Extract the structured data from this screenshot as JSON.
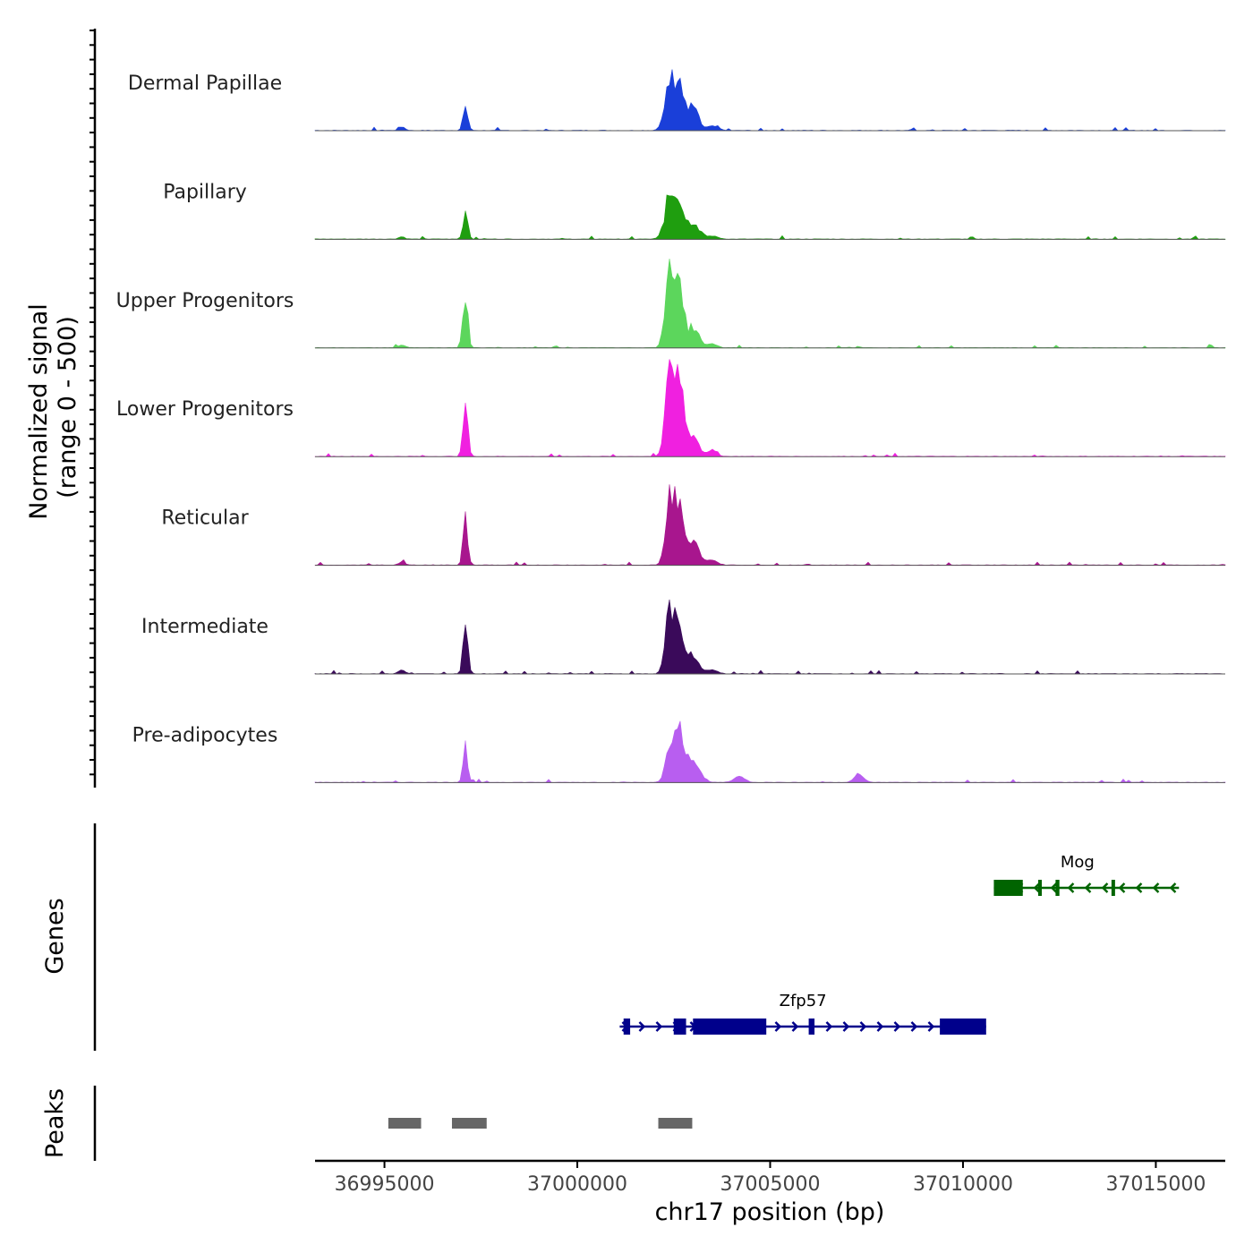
{
  "chart_data": {
    "type": "area",
    "chromosome": "chr17",
    "xlim": [
      36993200,
      37016800
    ],
    "xlabel": "chr17 position (bp)",
    "x_ticks": [
      36995000,
      37000000,
      37005000,
      37010000,
      37015000
    ],
    "x_tick_labels": [
      "36995000",
      "37000000",
      "37005000",
      "37010000",
      "37015000"
    ],
    "coverage_ylabel_line1": "Normalized signal",
    "coverage_ylabel_line2": "(range 0 - 500)",
    "ylim": [
      0,
      500
    ],
    "genes_label": "Genes",
    "peaks_label": "Peaks",
    "tracks": [
      {
        "name": "Dermal Papillae",
        "color": "#1a3fd9",
        "peaks": [
          [
            36995450,
            18,
            80
          ],
          [
            36997100,
            120,
            60
          ],
          [
            37002400,
            230,
            130
          ],
          [
            37002650,
            220,
            110
          ],
          [
            37003000,
            120,
            130
          ],
          [
            37003500,
            22,
            150
          ]
        ]
      },
      {
        "name": "Papillary",
        "color": "#1f9e0f",
        "peaks": [
          [
            36995450,
            12,
            80
          ],
          [
            36997100,
            150,
            60
          ],
          [
            37002400,
            210,
            130
          ],
          [
            37002650,
            180,
            110
          ],
          [
            37003000,
            90,
            150
          ],
          [
            37003500,
            15,
            150
          ]
        ]
      },
      {
        "name": "Upper Progenitors",
        "color": "#5cd65c",
        "peaks": [
          [
            36995450,
            15,
            80
          ],
          [
            36997100,
            260,
            60
          ],
          [
            37002400,
            480,
            110
          ],
          [
            37002650,
            250,
            110
          ],
          [
            37003000,
            100,
            150
          ],
          [
            37003500,
            20,
            120
          ]
        ]
      },
      {
        "name": "Lower Progenitors",
        "color": "#f020e0",
        "peaks": [
          [
            36997100,
            280,
            60
          ],
          [
            37002400,
            500,
            110
          ],
          [
            37002650,
            320,
            110
          ],
          [
            37003000,
            100,
            150
          ],
          [
            37003500,
            30,
            120
          ]
        ]
      },
      {
        "name": "Reticular",
        "color": "#a8168e",
        "peaks": [
          [
            36995450,
            15,
            80
          ],
          [
            36997100,
            230,
            60
          ],
          [
            37002400,
            350,
            110
          ],
          [
            37002650,
            260,
            110
          ],
          [
            37003000,
            110,
            160
          ],
          [
            37003500,
            25,
            130
          ]
        ]
      },
      {
        "name": "Intermediate",
        "color": "#3a0a5a",
        "peaks": [
          [
            36995450,
            20,
            80
          ],
          [
            36997100,
            240,
            60
          ],
          [
            37002400,
            340,
            110
          ],
          [
            37002650,
            190,
            110
          ],
          [
            37003000,
            90,
            150
          ],
          [
            37003500,
            20,
            130
          ]
        ]
      },
      {
        "name": "Pre-adipocytes",
        "color": "#b85ef0",
        "peaks": [
          [
            36997100,
            180,
            60
          ],
          [
            37002400,
            160,
            110
          ],
          [
            37002650,
            250,
            110
          ],
          [
            37003000,
            120,
            160
          ],
          [
            37004200,
            30,
            140
          ],
          [
            37007300,
            40,
            120
          ]
        ]
      }
    ],
    "genes": [
      {
        "name": "Mog",
        "color": "#006400",
        "strand": "-",
        "start": 37010800,
        "end": 37015600,
        "exons": [
          [
            37010800,
            37011550
          ],
          [
            37012400,
            37012500
          ],
          [
            37011950,
            37011990
          ],
          [
            37013850,
            37013880
          ]
        ]
      },
      {
        "name": "Zfp57",
        "color": "#00008b",
        "strand": "+",
        "start": 37001100,
        "end": 37010600,
        "exons": [
          [
            37001200,
            37001370
          ],
          [
            37002500,
            37002820
          ],
          [
            37003000,
            37004900
          ],
          [
            37006000,
            37006150
          ],
          [
            37009400,
            37010600
          ]
        ]
      }
    ],
    "peak_regions": [
      [
        36995100,
        36995950
      ],
      [
        36996750,
        36997650
      ],
      [
        37002100,
        37002980
      ]
    ]
  }
}
